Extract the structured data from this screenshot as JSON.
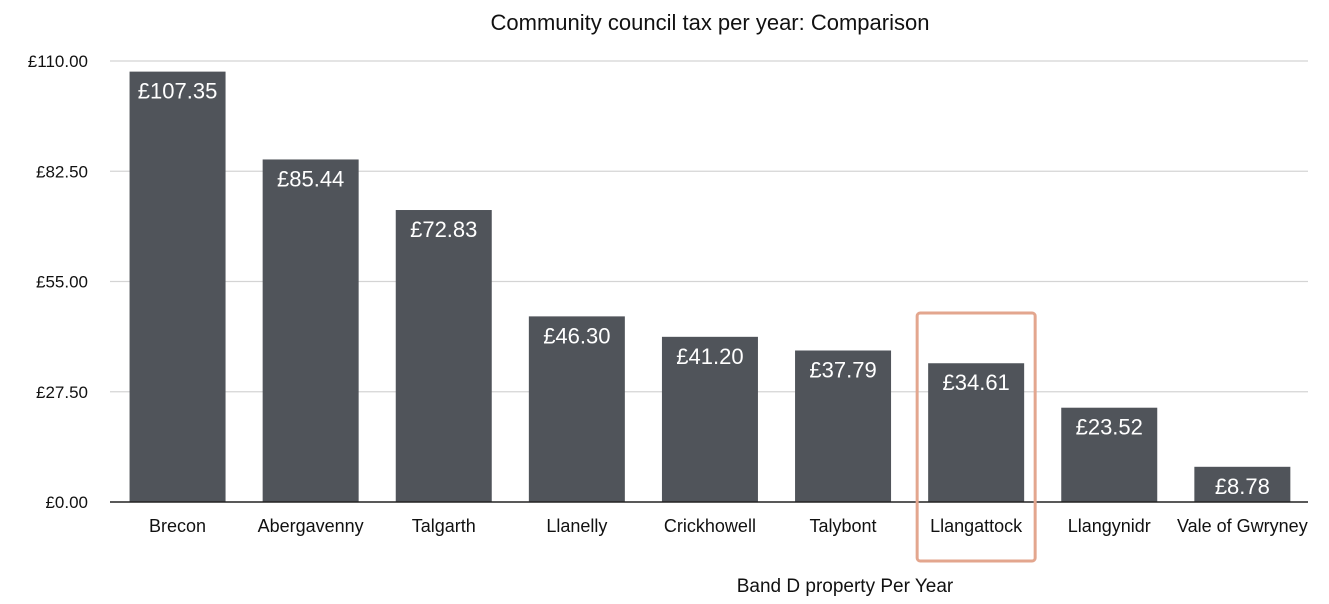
{
  "chart_data": {
    "type": "bar",
    "title": "Community council tax per year: Comparison",
    "xlabel": "Band D property Per Year",
    "ylabel": "",
    "ylim": [
      0,
      110
    ],
    "yticks": [
      0,
      27.5,
      55,
      82.5,
      110
    ],
    "ytick_labels": [
      "£0.00",
      "£27.50",
      "£55.00",
      "£82.50",
      "£110.00"
    ],
    "categories": [
      "Brecon",
      "Abergavenny",
      "Talgarth",
      "Llanelly",
      "Crickhowell",
      "Talybont",
      "Llangattock",
      "Llangynidr",
      "Vale of Gwryney"
    ],
    "values": [
      107.35,
      85.44,
      72.83,
      46.3,
      41.2,
      37.79,
      34.61,
      23.52,
      8.78
    ],
    "data_labels": [
      "£107.35",
      "£85.44",
      "£72.83",
      "£46.30",
      "£41.20",
      "£37.79",
      "£34.61",
      "£23.52",
      "£8.78"
    ],
    "highlighted_category": "Llangattock",
    "grid": true,
    "legend": "none"
  },
  "colors": {
    "bar": "#50545a",
    "grid": "#d4d4d4",
    "axis": "#222222",
    "highlight": "#e3a68e",
    "data_label": "#ffffff",
    "text": "#111111"
  }
}
